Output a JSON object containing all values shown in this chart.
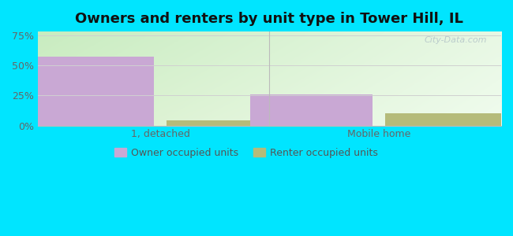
{
  "title": "Owners and renters by unit type in Tower Hill, IL",
  "title_fontsize": 13,
  "categories": [
    "1, detached",
    "Mobile home"
  ],
  "owner_values": [
    57,
    26
  ],
  "renter_values": [
    4,
    10
  ],
  "owner_color": "#c9a8d4",
  "renter_color": "#b5bb7a",
  "ytick_labels": [
    "0%",
    "25%",
    "50%",
    "75%"
  ],
  "ytick_values": [
    0,
    25,
    50,
    75
  ],
  "ylim": [
    0,
    78
  ],
  "bar_width": 0.28,
  "legend_owner": "Owner occupied units",
  "legend_renter": "Renter occupied units",
  "outer_background": "#00e5ff",
  "watermark": "City-Data.com",
  "grid_color": "#d0d0d0",
  "group_centers": [
    0.28,
    0.78
  ],
  "xlim": [
    0.0,
    1.06
  ]
}
